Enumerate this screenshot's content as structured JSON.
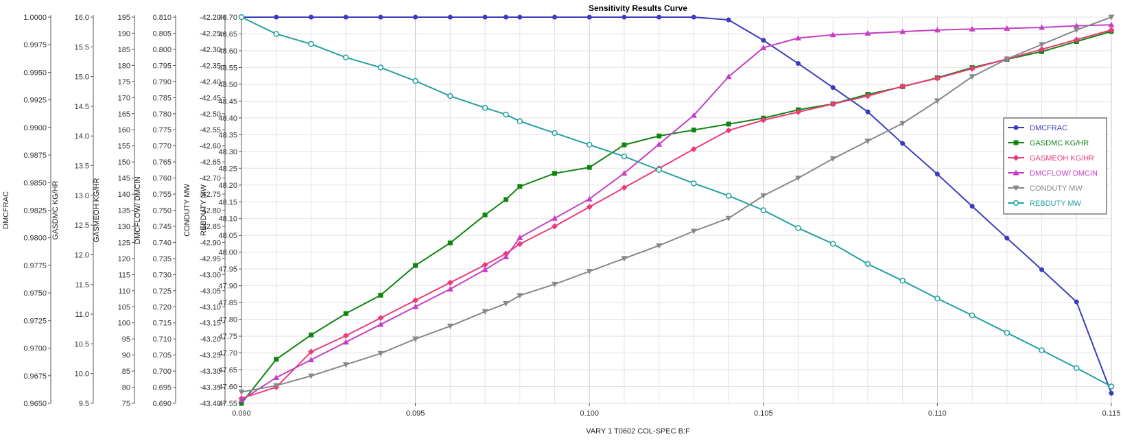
{
  "chart_data": {
    "type": "line",
    "title": "Sensitivity Results Curve",
    "xlabel": "VARY   1 T0602 COL-SPEC B:F",
    "xlim": [
      0.09,
      0.115
    ],
    "x_ticks": [
      "0.090",
      "0.095",
      "0.100",
      "0.105",
      "0.110",
      "0.115"
    ],
    "grid": true,
    "legend_position": "right",
    "y_axes": [
      {
        "id": "dmcfrac",
        "label": "DMCFRAC",
        "min": 0.965,
        "max": 1.0,
        "step": 0.0025,
        "decimals": 4
      },
      {
        "id": "gasdmc",
        "label": "GASDMC KG/HR",
        "min": 9.5,
        "max": 16.0,
        "step": 0.5,
        "decimals": 1
      },
      {
        "id": "gasmeoh",
        "label": "GASMEOH KG/HR",
        "min": 75,
        "max": 195,
        "step": 5,
        "decimals": 0
      },
      {
        "id": "dmcflow",
        "label": "DMCFLOW/ DMCIN",
        "min": 0.69,
        "max": 0.81,
        "step": 0.005,
        "decimals": 3
      },
      {
        "id": "conduty",
        "label": "CONDUTY MW",
        "min": -43.4,
        "max": -42.2,
        "step": 0.05,
        "decimals": 2
      },
      {
        "id": "rebduty",
        "label": "REBDUTY MW",
        "min": 47.55,
        "max": 48.7,
        "step": 0.05,
        "decimals": 2
      }
    ],
    "x": [
      0.09,
      0.091,
      0.092,
      0.093,
      0.094,
      0.095,
      0.096,
      0.097,
      0.0976,
      0.098,
      0.099,
      0.1,
      0.101,
      0.102,
      0.103,
      0.104,
      0.105,
      0.106,
      0.107,
      0.108,
      0.109,
      0.11,
      0.111,
      0.112,
      0.113,
      0.114,
      0.115
    ],
    "series": [
      {
        "name": "DMCFRAC",
        "axis": "dmcfrac",
        "color": "#3b3bbf",
        "marker": "circle",
        "values": [
          1.0,
          1.0,
          1.0,
          1.0,
          1.0,
          1.0,
          1.0,
          1.0,
          1.0,
          1.0,
          1.0,
          1.0,
          1.0,
          1.0,
          1.0,
          0.99975,
          0.9979,
          0.9958,
          0.99362,
          0.99142,
          0.98855,
          0.98577,
          0.98286,
          0.97997,
          0.97711,
          0.97419,
          0.96591
        ]
      },
      {
        "name": "GASDMC KG/HR",
        "axis": "gasdmc",
        "color": "#108510",
        "marker": "square",
        "values": [
          9.5,
          10.24,
          10.65,
          11.01,
          11.32,
          11.82,
          12.2,
          12.67,
          12.93,
          13.15,
          13.37,
          13.47,
          13.85,
          14.0,
          14.1,
          14.2,
          14.3,
          14.44,
          14.54,
          14.7,
          14.83,
          14.98,
          15.15,
          15.29,
          15.42,
          15.59,
          15.76
        ]
      },
      {
        "name": "GASMEOH KG/HR",
        "axis": "gasmeoh",
        "color": "#ee3a7a",
        "marker": "diamond",
        "values": [
          76.5,
          80,
          91,
          96,
          101.5,
          107,
          112.5,
          118,
          121.5,
          124.5,
          130,
          136,
          142,
          148,
          154,
          159.8,
          163,
          165.5,
          168,
          170.5,
          173.5,
          176,
          179,
          182,
          185,
          188,
          191
        ]
      },
      {
        "name": "DMCFLOW/ DMCIN",
        "axis": "dmcflow",
        "color": "#c43fc4",
        "marker": "triangle-up",
        "values": [
          0.691,
          0.698,
          0.7035,
          0.709,
          0.7145,
          0.72,
          0.7255,
          0.7315,
          0.7355,
          0.7415,
          0.7475,
          0.7535,
          0.7615,
          0.7705,
          0.7795,
          0.7915,
          0.8005,
          0.8035,
          0.8045,
          0.805,
          0.8055,
          0.806,
          0.8063,
          0.8065,
          0.8068,
          0.8073,
          0.8076
        ]
      },
      {
        "name": "CONDUTY MW",
        "axis": "conduty",
        "color": "#888888",
        "marker": "triangle-down",
        "values": [
          -43.365,
          -43.345,
          -43.315,
          -43.28,
          -43.245,
          -43.2,
          -43.16,
          -43.115,
          -43.09,
          -43.065,
          -43.03,
          -42.99,
          -42.95,
          -42.91,
          -42.865,
          -42.825,
          -42.755,
          -42.7,
          -42.64,
          -42.585,
          -42.53,
          -42.46,
          -42.385,
          -42.33,
          -42.285,
          -42.24,
          -42.2
        ]
      },
      {
        "name": "REBDUTY MW",
        "axis": "rebduty",
        "color": "#20a0a0",
        "marker": "circle-open",
        "values": [
          48.7,
          48.65,
          48.62,
          48.58,
          48.55,
          48.51,
          48.465,
          48.43,
          48.41,
          48.39,
          48.355,
          48.32,
          48.285,
          48.245,
          48.205,
          48.168,
          48.125,
          48.072,
          48.025,
          47.965,
          47.915,
          47.862,
          47.812,
          47.76,
          47.708,
          47.655,
          47.6
        ]
      }
    ]
  }
}
